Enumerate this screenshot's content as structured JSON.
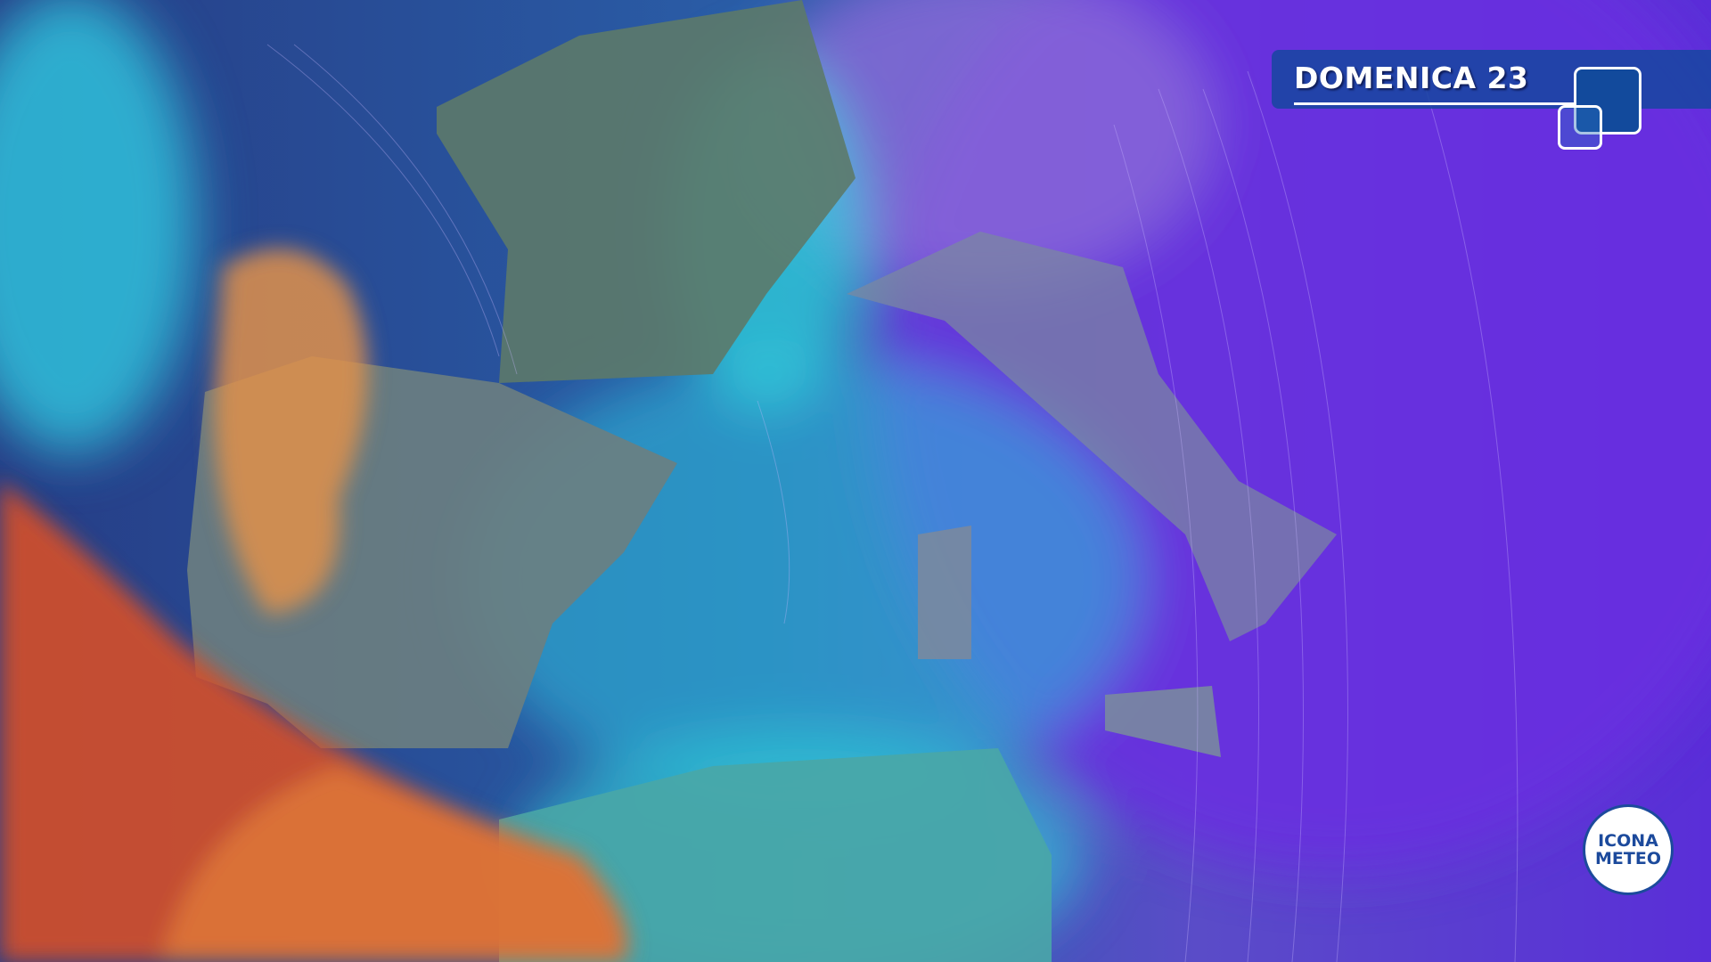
{
  "header": {
    "title": "DOMENICA 23"
  },
  "logo": {
    "line1": "ICONA",
    "line2": "METEO"
  },
  "colors": {
    "sea": "#2a3f8a",
    "cyan": "#2fd6e0",
    "purple": "#6a3fe0",
    "orange": "#e0904a",
    "red": "#d04a2a",
    "title_bg": "#1646a0"
  }
}
